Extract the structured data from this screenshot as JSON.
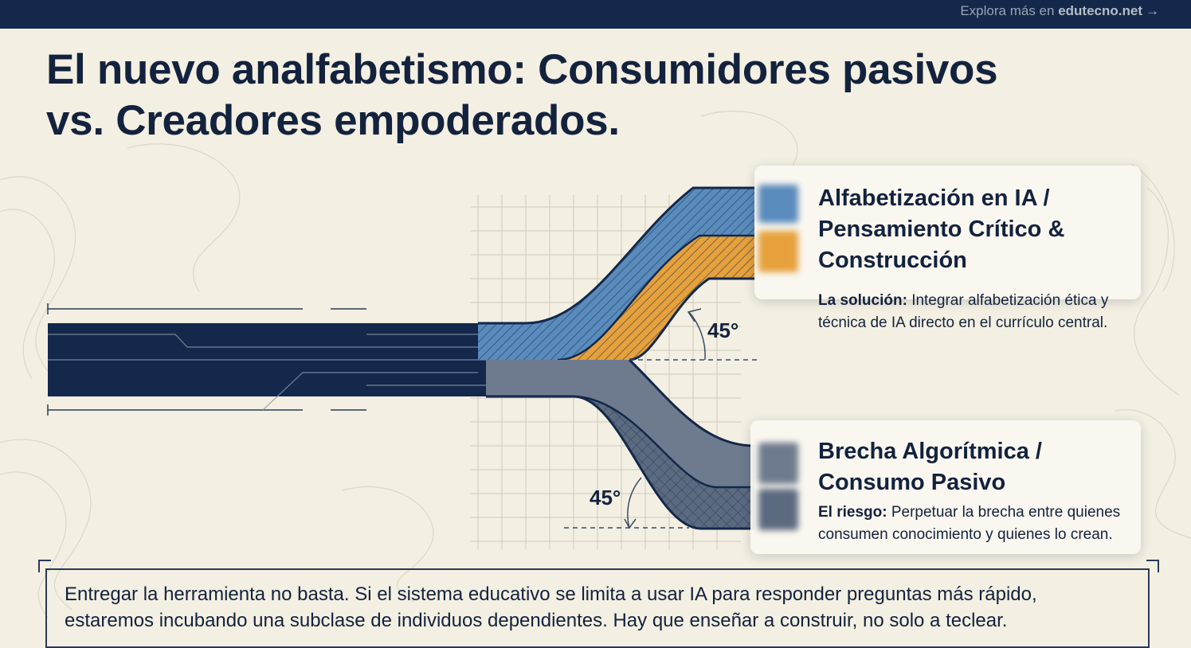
{
  "header": {
    "explore_prefix": "Explora más en",
    "explore_site": "edutecno.net",
    "explore_arrow": "→"
  },
  "title_line1": "El nuevo analfabetismo: Consumidores pasivos",
  "title_line2": "vs. Creadores empoderados.",
  "top_branch": {
    "title": "Alfabetización en IA / Pensamiento Crítico & Construcción",
    "desc_label": "La solución:",
    "desc_line1_rest": "Integrar alfabetización ética y",
    "desc_line2": "técnica de IA directo en el currículo central.",
    "angle": "45°",
    "colors": {
      "upper": "#5a8bbd",
      "lower": "#e6a13c"
    }
  },
  "bottom_branch": {
    "title": "Brecha Algorítmica / Consumo Pasivo",
    "desc_label": "El riesgo:",
    "desc_line1_rest": "Perpetuar la brecha entre quienes",
    "desc_line2": "consumen conocimiento y quienes lo crean.",
    "angle": "45°",
    "colors": {
      "upper": "#6e7a8e",
      "lower": "#5c6a80"
    }
  },
  "trunk_color": "#13284a",
  "quote": {
    "line1": "Entregar la herramienta no basta. Si el sistema educativo se limita a usar IA para responder preguntas más rápido,",
    "line2": "estaremos incubando una subclase de individuos dependientes. Hay que enseñar a construir, no solo a teclear."
  }
}
